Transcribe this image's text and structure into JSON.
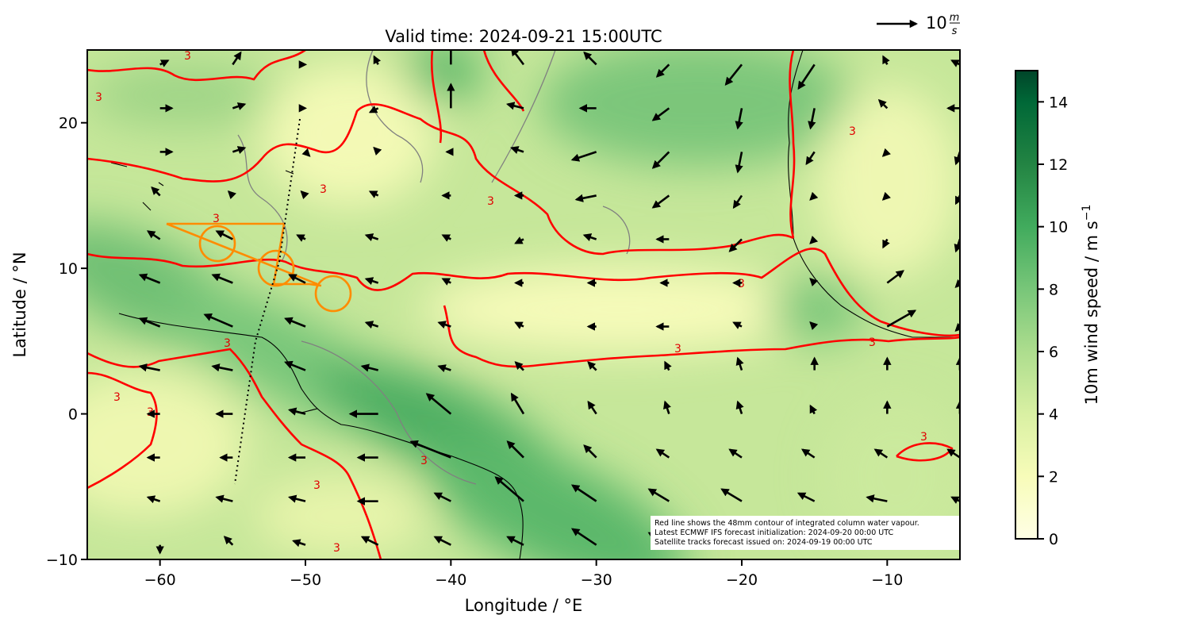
{
  "chart_data": {
    "type": "quiver",
    "title": "Valid time: 2024-09-21 15:00UTC",
    "x_label": "Longitude / °E",
    "y_label": "Latitude / °N",
    "xlim": [
      -65,
      -5
    ],
    "ylim": [
      -10,
      25
    ],
    "xticks": [
      {
        "value": -60,
        "label": "−60"
      },
      {
        "value": -50,
        "label": "−50"
      },
      {
        "value": -40,
        "label": "−40"
      },
      {
        "value": -30,
        "label": "−30"
      },
      {
        "value": -20,
        "label": "−20"
      },
      {
        "value": -10,
        "label": "−10"
      }
    ],
    "yticks": [
      {
        "value": -10,
        "label": "−10"
      },
      0,
      10,
      20
    ],
    "colorbar": {
      "label": "10m wind speed / m s",
      "label_superscript": "−1",
      "lim": [
        0,
        15
      ],
      "ticks": [
        0,
        2,
        4,
        6,
        8,
        10,
        12,
        14
      ]
    },
    "quiver_key": {
      "value": 10,
      "unit_numerator": "m",
      "unit_denominator": "s"
    },
    "contour_label": "3",
    "annotation": [
      "Red line shows the 48mm contour of integrated column water vapour.",
      "Latest ECMWF IFS forecast initialization: 2024-09-20 00:00 UTC",
      "Satellite tracks forecast issued on: 2024-09-19 00:00 UTC"
    ],
    "wind": {
      "lon": [
        -60,
        -55,
        -50,
        -45,
        -40,
        -35,
        -30,
        -25,
        -20,
        -15,
        -10,
        -5
      ],
      "lat": [
        24,
        21,
        18,
        15,
        12,
        9,
        6,
        3,
        0,
        -3,
        -6,
        -9
      ],
      "u": [
        [
          2,
          2,
          0,
          -1,
          0,
          -3,
          -3,
          -3,
          -4,
          -4,
          -1,
          -2
        ],
        [
          3,
          3,
          0,
          -2,
          0,
          -4,
          -4,
          -4,
          -1,
          -1,
          -2,
          -3
        ],
        [
          3,
          3,
          1,
          -1,
          -1,
          -3,
          -6,
          -4,
          -1,
          -2,
          -1,
          -1
        ],
        [
          -2,
          -1,
          -1,
          -2,
          -2,
          -2,
          -5,
          -4,
          -2,
          -1,
          -1,
          -1
        ],
        [
          -3,
          -4,
          -2,
          -3,
          -2,
          -2,
          -3,
          -3,
          -3,
          -1,
          -1,
          -1
        ],
        [
          -5,
          -5,
          -4,
          -3,
          -2,
          -2,
          -2,
          -2,
          -2,
          -1,
          4,
          -1
        ],
        [
          -5,
          -7,
          -5,
          -3,
          -3,
          -2,
          -2,
          -3,
          -2,
          -1,
          7,
          -1
        ],
        [
          -5,
          -5,
          -5,
          -4,
          -3,
          -2,
          -2,
          -1,
          -1,
          0,
          0,
          0
        ],
        [
          -3,
          -4,
          -4,
          -7,
          -6,
          -3,
          -2,
          -1,
          -1,
          -1,
          0,
          0
        ],
        [
          -3,
          -3,
          -4,
          -5,
          -10,
          -4,
          -3,
          -3,
          -3,
          -3,
          -3,
          -3
        ],
        [
          -3,
          -4,
          -4,
          -5,
          -4,
          -7,
          -6,
          -5,
          -5,
          -4,
          -5,
          -2
        ],
        [
          0,
          -2,
          -3,
          -4,
          -4,
          -4,
          -6,
          -5,
          -4,
          -4,
          -3,
          -3
        ]
      ],
      "v": [
        [
          1,
          3,
          0,
          2,
          7,
          4,
          3,
          -3,
          -5,
          -6,
          2,
          1
        ],
        [
          0,
          1,
          0,
          -1,
          6,
          1,
          0,
          -3,
          -5,
          -5,
          2,
          0
        ],
        [
          0,
          1,
          -1,
          1,
          0,
          1,
          -2,
          -4,
          -5,
          -3,
          -1,
          -3
        ],
        [
          2,
          1,
          1,
          1,
          0,
          0,
          -1,
          -3,
          -3,
          -1,
          -1,
          -2
        ],
        [
          2,
          2,
          1,
          1,
          1,
          -1,
          1,
          0,
          -3,
          -1,
          -2,
          -3
        ],
        [
          2,
          2,
          2,
          1,
          1,
          0,
          0,
          0,
          0,
          1,
          3,
          -1
        ],
        [
          2,
          3,
          2,
          1,
          1,
          1,
          0,
          0,
          1,
          1,
          4,
          -1
        ],
        [
          1,
          1,
          2,
          1,
          1,
          2,
          2,
          2,
          3,
          3,
          3,
          3
        ],
        [
          0,
          0,
          1,
          0,
          5,
          5,
          3,
          3,
          3,
          2,
          3,
          3
        ],
        [
          0,
          0,
          0,
          0,
          4,
          4,
          3,
          2,
          2,
          2,
          2,
          2
        ],
        [
          1,
          1,
          1,
          0,
          2,
          6,
          4,
          3,
          3,
          2,
          1,
          1
        ],
        [
          -2,
          2,
          1,
          2,
          2,
          2,
          4,
          3,
          2,
          2,
          2,
          2
        ]
      ]
    }
  }
}
